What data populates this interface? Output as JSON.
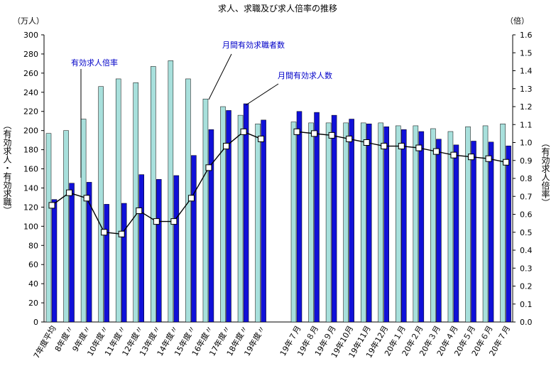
{
  "chart_data": {
    "type": "bar",
    "title": "求人、求職及び求人倍率の推移",
    "left_unit": "（万人）",
    "right_unit": "（倍）",
    "left_axis_label": "（有効求人・有効求職）",
    "right_axis_label": "（有効求人倍率）",
    "left_ylim": [
      0,
      300
    ],
    "left_ticks": [
      "0",
      "20",
      "40",
      "60",
      "80",
      "100",
      "120",
      "140",
      "160",
      "180",
      "200",
      "220",
      "240",
      "260",
      "280",
      "300"
    ],
    "right_ylim": [
      0,
      1.6
    ],
    "right_ticks": [
      "0.0",
      "0.1",
      "0.2",
      "0.3",
      "0.4",
      "0.5",
      "0.6",
      "0.7",
      "0.8",
      "0.9",
      "1.0",
      "1.1",
      "1.2",
      "1.3",
      "1.4",
      "1.5",
      "1.6"
    ],
    "categories": [
      "7年度平均",
      "8年度〃",
      "9年度〃",
      "10年度〃",
      "11年度〃",
      "12年度〃",
      "13年度〃",
      "14年度〃",
      "15年度〃",
      "16年度〃",
      "17年度〃",
      "18年度〃",
      "19年度〃",
      "19年７月",
      "19年８月",
      "19年９月",
      "19年10月",
      "19年11月",
      "19年12月",
      "20年１月",
      "20年２月",
      "20年３月",
      "20年４月",
      "20年５月",
      "20年６月",
      "20年７月"
    ],
    "series": [
      {
        "name": "月間有効求職者数",
        "color": "#a8e0dc",
        "values": [
          197,
          200,
          212,
          246,
          254,
          250,
          267,
          273,
          254,
          233,
          225,
          216,
          207,
          209,
          208,
          208,
          208,
          208,
          208,
          205,
          205,
          202,
          199,
          204,
          205,
          207
        ]
      },
      {
        "name": "月間有効求人数",
        "color": "#1010d8",
        "values": [
          128,
          145,
          146,
          123,
          124,
          154,
          149,
          153,
          174,
          201,
          221,
          228,
          211,
          220,
          219,
          216,
          212,
          207,
          204,
          201,
          199,
          191,
          185,
          189,
          188,
          184
        ]
      },
      {
        "name": "有効求人倍率",
        "color": "#000000",
        "values": [
          0.65,
          0.72,
          0.69,
          0.5,
          0.49,
          0.62,
          0.56,
          0.56,
          0.69,
          0.86,
          0.98,
          1.06,
          1.02,
          1.06,
          1.05,
          1.04,
          1.02,
          1.0,
          0.98,
          0.98,
          0.97,
          0.95,
          0.93,
          0.92,
          0.91,
          0.89
        ]
      }
    ],
    "annotations": [
      {
        "text": "有効求人倍率"
      },
      {
        "text": "月間有効求職者数"
      },
      {
        "text": "月間有効求人数"
      }
    ],
    "grid": false,
    "legend": "annotations"
  }
}
